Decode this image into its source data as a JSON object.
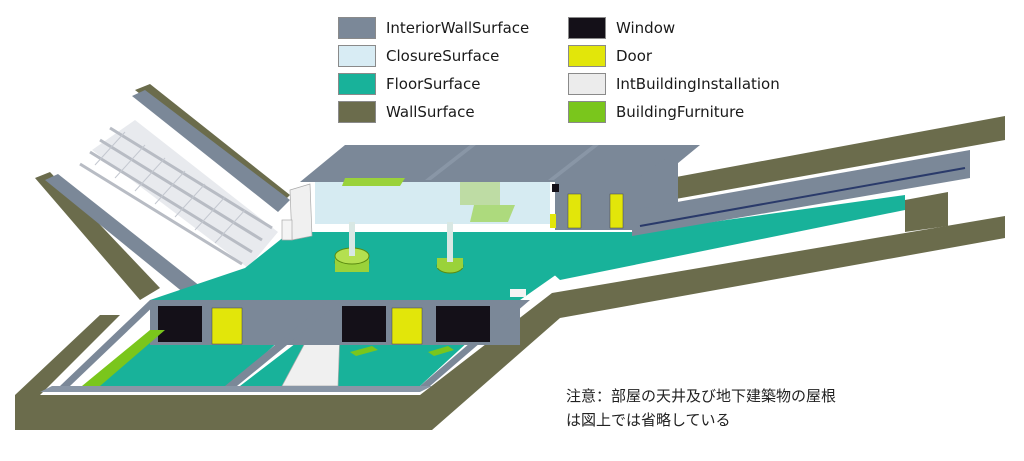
{
  "legend": [
    {
      "label": "InteriorWallSurface",
      "color": "#7b8898"
    },
    {
      "label": "ClosureSurface",
      "color": "#d8ecf4"
    },
    {
      "label": "FloorSurface",
      "color": "#18b29a"
    },
    {
      "label": "WallSurface",
      "color": "#6b6c4c"
    },
    {
      "label": "Window",
      "color": "#141018"
    },
    {
      "label": "Door",
      "color": "#e2e60a"
    },
    {
      "label": "IntBuildingInstallation",
      "color": "#ececec"
    },
    {
      "label": "BuildingFurniture",
      "color": "#7ac61c"
    }
  ],
  "note": {
    "line1": "注意：部屋の天井及び地下建築物の屋根",
    "line2": "は図上では省略している"
  }
}
